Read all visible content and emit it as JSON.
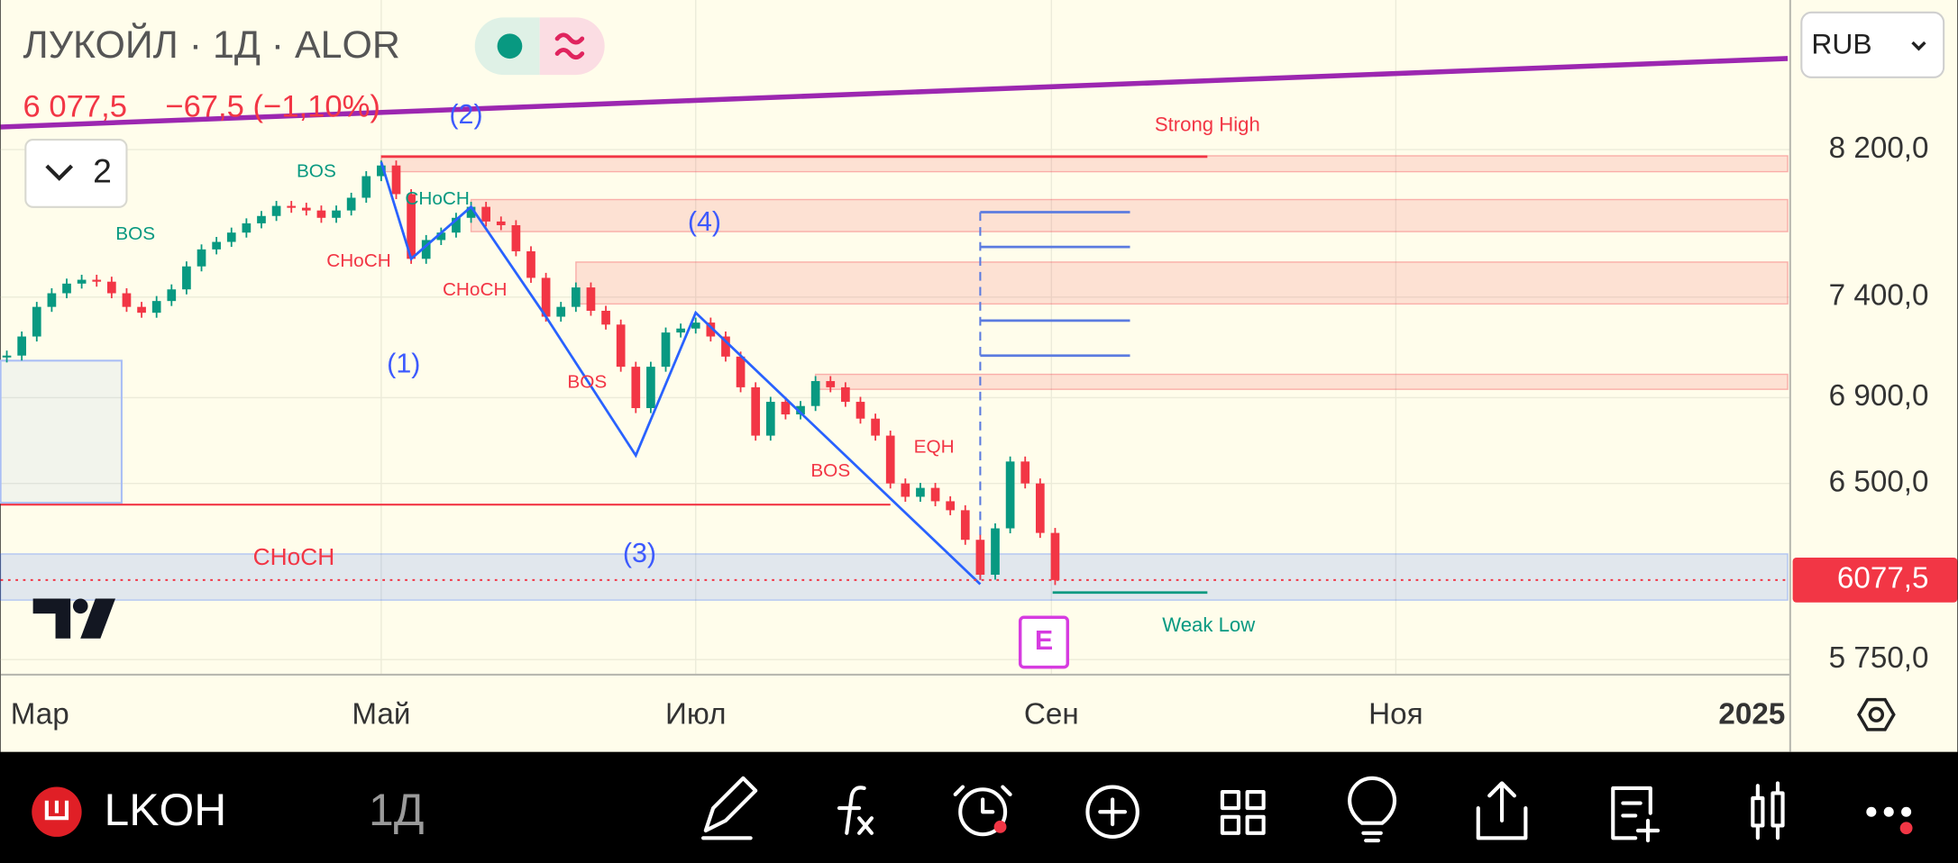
{
  "app": {
    "currency": "RUB",
    "ticker": "LKOH",
    "interval": "1Д",
    "indicator_count": "2"
  },
  "chart_data": {
    "type": "candlestick",
    "title": "ЛУКОЙЛ · 1Д · ALOR",
    "last_price_text": "6 077,5",
    "change_text": "−67,5 (−1,10%)",
    "last_price": 6077.5,
    "last_price_label": "6077,5",
    "log_scale": true,
    "grid": true,
    "ylim": [
      5690,
      9100
    ],
    "yticks": [
      {
        "value": 8200,
        "label": "8 200,0"
      },
      {
        "value": 7400,
        "label": "7 400,0"
      },
      {
        "value": 6900,
        "label": "6 900,0"
      },
      {
        "value": 6500,
        "label": "6 500,0"
      },
      {
        "value": 5750,
        "label": "5 750,0"
      }
    ],
    "x_labels": [
      "Мар",
      "Май",
      "Июл",
      "Сен",
      "Ноя",
      "2025"
    ],
    "up_color": "#089981",
    "down_color": "#f23645",
    "closes": [
      7105,
      7200,
      7350,
      7420,
      7470,
      7490,
      7480,
      7420,
      7350,
      7320,
      7380,
      7440,
      7560,
      7650,
      7690,
      7740,
      7790,
      7830,
      7885,
      7875,
      7860,
      7820,
      7860,
      7930,
      8050,
      8110,
      7950,
      7600,
      7700,
      7740,
      7820,
      7880,
      7800,
      7780,
      7640,
      7500,
      7300,
      7350,
      7450,
      7330,
      7260,
      7050,
      6850,
      7050,
      7220,
      7240,
      7270,
      7200,
      7100,
      6950,
      6720,
      6880,
      6820,
      6860,
      6980,
      6950,
      6880,
      6800,
      6720,
      6500,
      6440,
      6480,
      6420,
      6380,
      6250,
      6100,
      6300,
      6600,
      6500,
      6280,
      6077.5
    ],
    "supply_zones": [
      {
        "start": 25,
        "high": 8165,
        "low": 8075
      },
      {
        "start": 31,
        "high": 7920,
        "low": 7745
      },
      {
        "start": 38,
        "high": 7583,
        "low": 7365
      },
      {
        "start": 54,
        "high": 7013,
        "low": 6940
      }
    ],
    "demand_zone": {
      "high": 6189,
      "low": 5993
    },
    "range_box": {
      "high": 7080,
      "low": 6413
    },
    "choch_level": 6405,
    "strong_high": {
      "start": 25,
      "price": 8160,
      "label": "Strong High"
    },
    "weak_low": {
      "start": 70,
      "price": 6025,
      "label": "Weak Low"
    },
    "trendline": [
      8330,
      8737
    ],
    "wave": {
      "index": [
        25,
        27,
        31,
        36,
        42,
        46,
        65
      ],
      "price": [
        8130,
        7600,
        7880,
        7300,
        6628,
        7320,
        6060
      ]
    },
    "projection": {
      "start": 65,
      "levels": [
        7851,
        7663,
        7280,
        7105
      ]
    },
    "annotations": [
      "BOS",
      "BOS",
      "CHoCH",
      "CHoCH",
      "CHoCH",
      "BOS",
      "BOS",
      "EQH",
      "CHoCH",
      "(1)",
      "(2)",
      "(3)",
      "(4)",
      "E"
    ]
  }
}
